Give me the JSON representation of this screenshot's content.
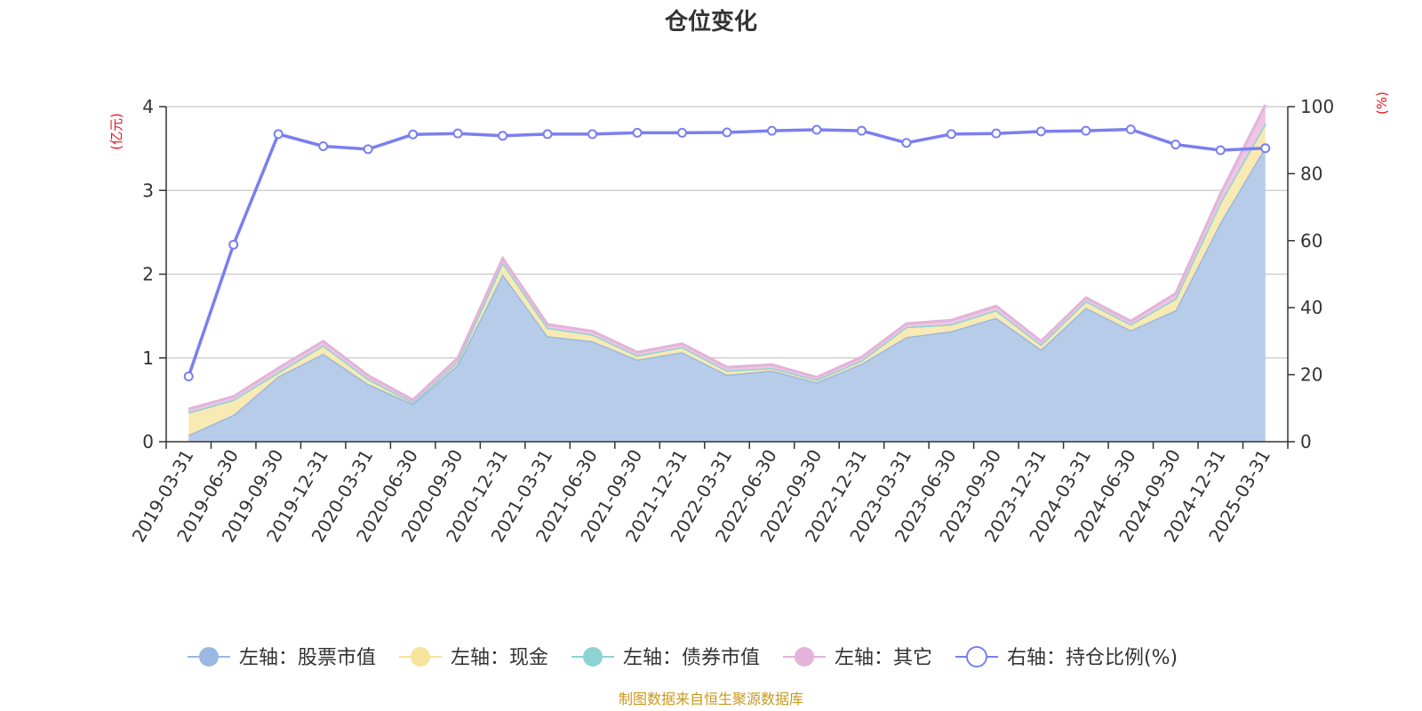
{
  "chart_data": {
    "type": "area",
    "title": "仓位变化",
    "left_axis": {
      "unit": "(亿元)",
      "range": [
        0,
        4
      ],
      "ticks": [
        "0",
        "1",
        "2",
        "3",
        "4"
      ]
    },
    "right_axis": {
      "unit": "(%)",
      "range": [
        0,
        100
      ],
      "ticks": [
        "0",
        "20",
        "40",
        "60",
        "80",
        "100"
      ]
    },
    "categories": [
      "2019-03-31",
      "2019-06-30",
      "2019-09-30",
      "2019-12-31",
      "2020-03-31",
      "2020-06-30",
      "2020-09-30",
      "2020-12-31",
      "2021-03-31",
      "2021-06-30",
      "2021-09-30",
      "2021-12-31",
      "2022-03-31",
      "2022-06-30",
      "2022-09-30",
      "2022-12-31",
      "2023-03-31",
      "2023-06-30",
      "2023-09-30",
      "2023-12-31",
      "2024-03-31",
      "2024-06-30",
      "2024-09-30",
      "2024-12-31",
      "2025-03-31"
    ],
    "stacked_series": [
      {
        "name": "左轴：股票市值",
        "axis": "left",
        "color": "#9bb8e2",
        "fill": "#b7cce9",
        "values": [
          0.08,
          0.32,
          0.78,
          1.05,
          0.69,
          0.45,
          0.92,
          2.0,
          1.26,
          1.2,
          0.98,
          1.07,
          0.8,
          0.85,
          0.71,
          0.93,
          1.25,
          1.32,
          1.48,
          1.1,
          1.6,
          1.33,
          1.57,
          2.62,
          3.52
        ]
      },
      {
        "name": "左轴：现金",
        "axis": "left",
        "color": "#f7e39a",
        "fill": "#f8eab2",
        "values": [
          0.27,
          0.18,
          0.05,
          0.1,
          0.06,
          0.02,
          0.04,
          0.14,
          0.1,
          0.08,
          0.05,
          0.06,
          0.05,
          0.03,
          0.03,
          0.04,
          0.12,
          0.08,
          0.09,
          0.06,
          0.08,
          0.07,
          0.14,
          0.24,
          0.28
        ]
      },
      {
        "name": "左轴：债券市值",
        "axis": "left",
        "color": "#8ed3d3",
        "fill": "#bfe6e6",
        "values": [
          0,
          0,
          0,
          0,
          0,
          0,
          0,
          0,
          0,
          0,
          0,
          0,
          0,
          0,
          0,
          0,
          0,
          0,
          0,
          0,
          0,
          0,
          0,
          0,
          0
        ]
      },
      {
        "name": "左轴：其它",
        "axis": "left",
        "color": "#e3b3d9",
        "fill": "#ecc6e4",
        "values": [
          0.04,
          0.04,
          0.05,
          0.05,
          0.04,
          0.03,
          0.04,
          0.05,
          0.04,
          0.04,
          0.04,
          0.04,
          0.04,
          0.04,
          0.03,
          0.04,
          0.04,
          0.05,
          0.05,
          0.04,
          0.04,
          0.04,
          0.06,
          0.1,
          0.22
        ]
      }
    ],
    "line_series": [
      {
        "name": "右轴：持仓比例(%)",
        "axis": "right",
        "color": "#7a7ff0",
        "values": [
          19.5,
          58.8,
          91.8,
          88.2,
          87.3,
          91.7,
          92.0,
          91.3,
          91.8,
          91.8,
          92.2,
          92.2,
          92.3,
          92.8,
          93.1,
          92.8,
          89.2,
          91.8,
          92.0,
          92.6,
          92.8,
          93.2,
          88.7,
          87.0,
          87.6
        ]
      }
    ],
    "grid": true,
    "legend_position": "bottom"
  },
  "legend": [
    {
      "label": "左轴：股票市值",
      "color": "#9bb8e2",
      "kind": "filled"
    },
    {
      "label": "左轴：现金",
      "color": "#f7e39a",
      "kind": "filled"
    },
    {
      "label": "左轴：债券市值",
      "color": "#8ed3d3",
      "kind": "filled"
    },
    {
      "label": "左轴：其它",
      "color": "#e3b3d9",
      "kind": "filled"
    },
    {
      "label": "右轴：持仓比例(%)",
      "color": "#7a7ff0",
      "kind": "hollow"
    }
  ],
  "source_text": "制图数据来自恒生聚源数据库"
}
